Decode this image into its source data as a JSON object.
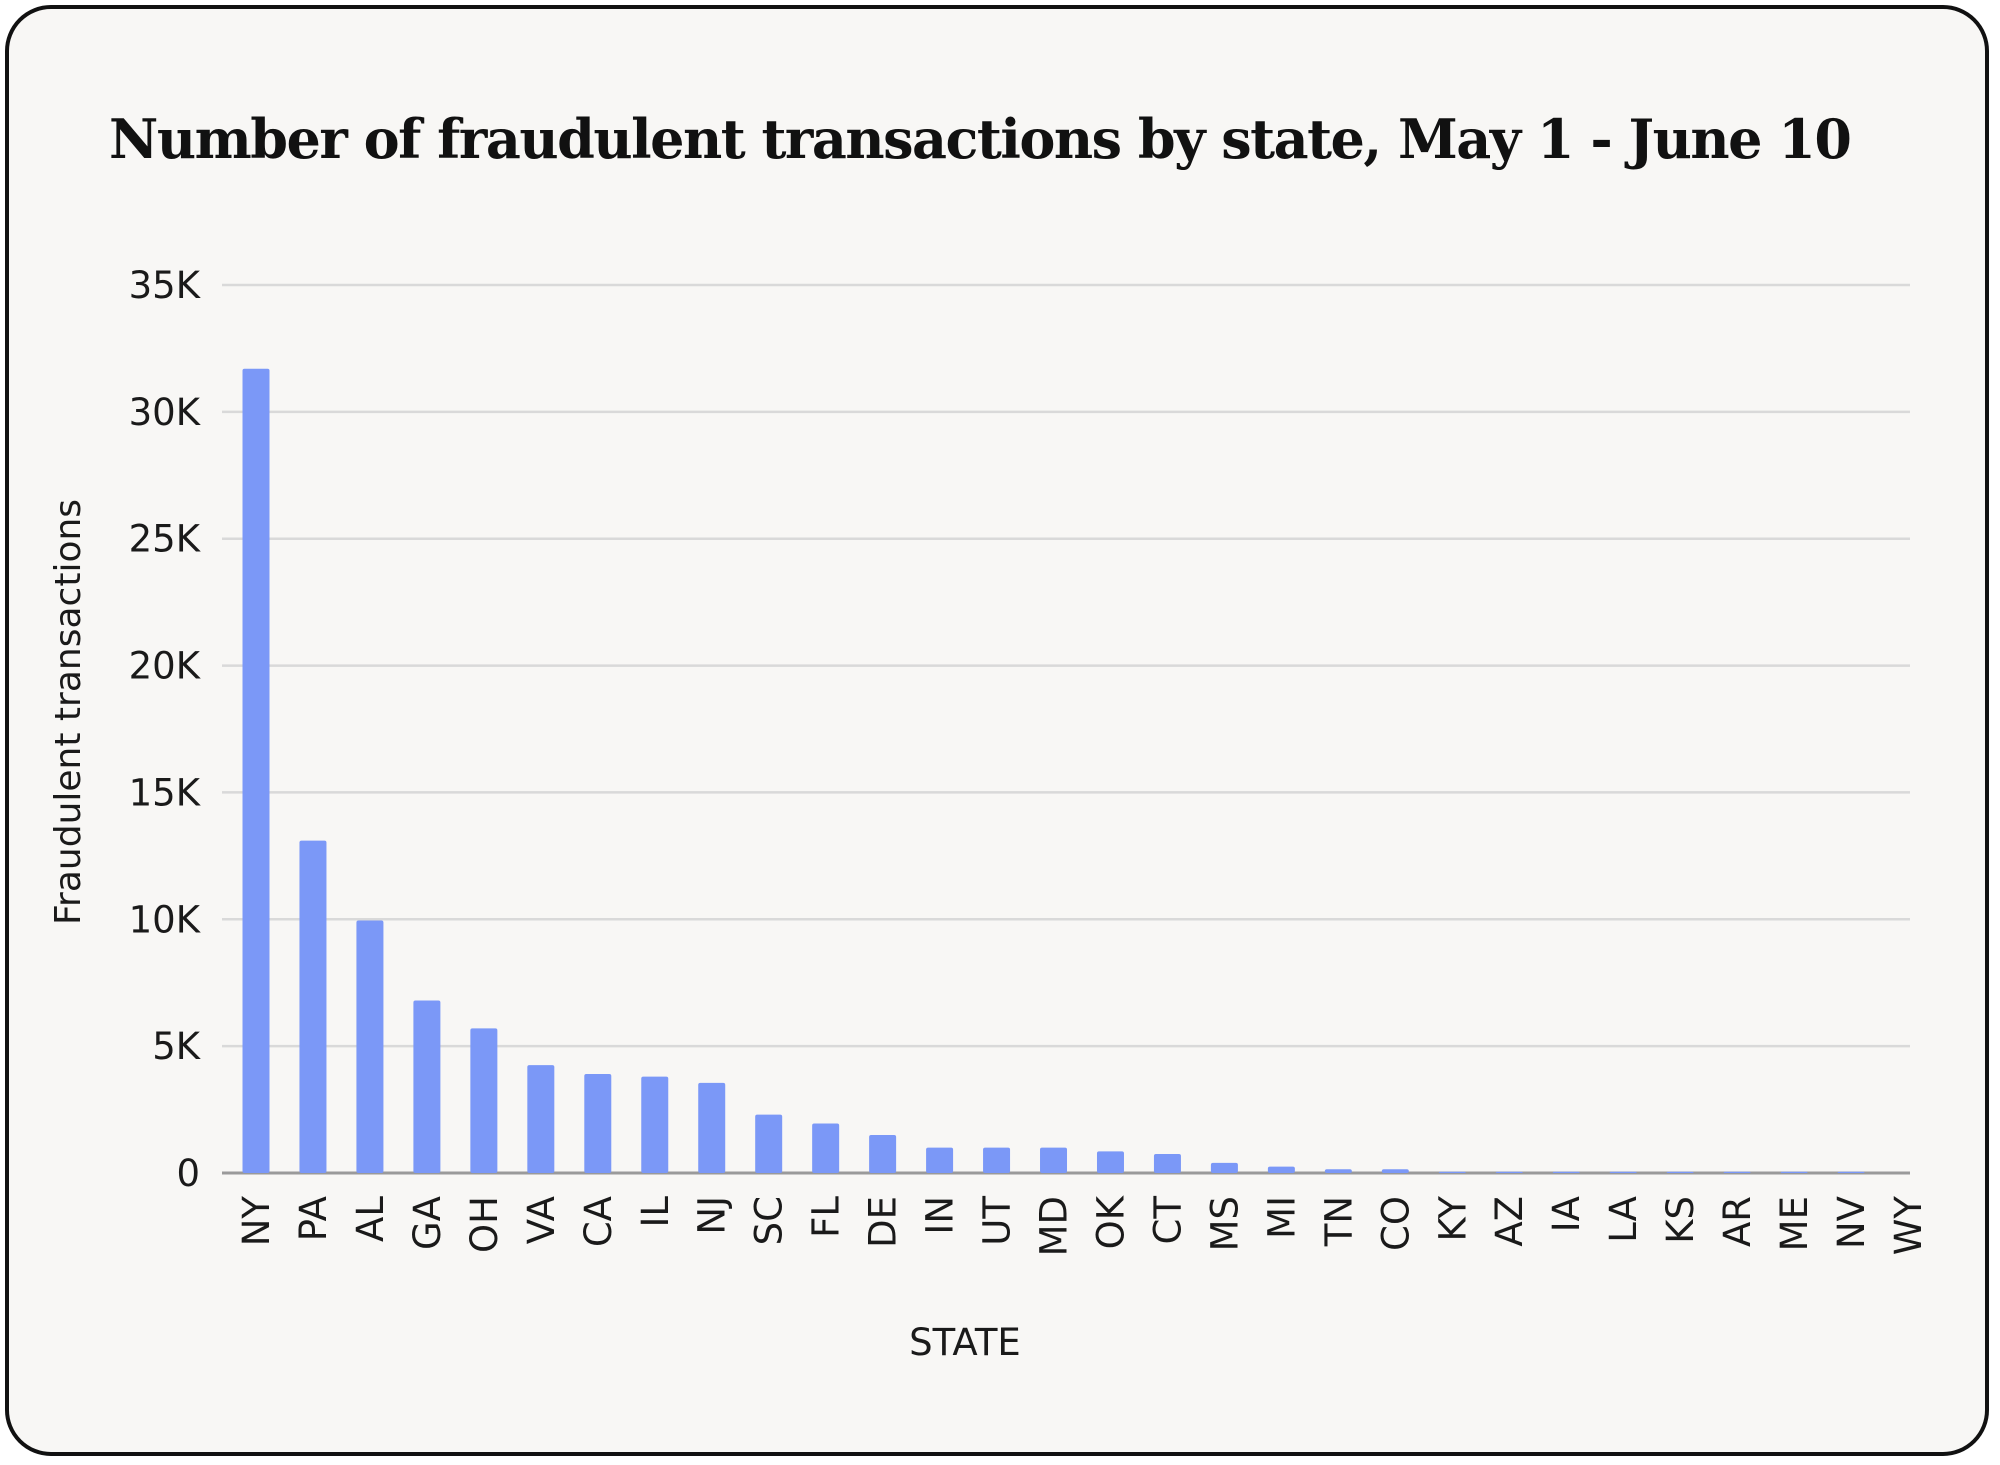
{
  "chart_data": {
    "type": "bar",
    "title": "Number of fraudulent transactions by state, May 1 - June 10",
    "xlabel": "STATE",
    "ylabel": "Fraudulent transactions",
    "categories": [
      "NY",
      "PA",
      "AL",
      "GA",
      "OH",
      "VA",
      "CA",
      "IL",
      "NJ",
      "SC",
      "FL",
      "DE",
      "IN",
      "UT",
      "MD",
      "OK",
      "CT",
      "MS",
      "MI",
      "TN",
      "CO",
      "KY",
      "AZ",
      "IA",
      "LA",
      "KS",
      "AR",
      "ME",
      "NV",
      "WY"
    ],
    "values": [
      31700,
      13100,
      9950,
      6800,
      5700,
      4250,
      3900,
      3800,
      3550,
      2300,
      1950,
      1500,
      1000,
      1000,
      1000,
      850,
      750,
      400,
      250,
      150,
      150,
      50,
      50,
      50,
      50,
      50,
      50,
      50,
      50,
      0
    ],
    "ylim": [
      0,
      35000
    ],
    "yticks": [
      0,
      5000,
      10000,
      15000,
      20000,
      25000,
      30000,
      35000
    ],
    "ytick_labels": [
      "0",
      "5K",
      "10K",
      "15K",
      "20K",
      "25K",
      "30K",
      "35K"
    ],
    "grid": true,
    "legend": "none",
    "colors": {
      "bar": "#7b98f7",
      "grid": "#d9d9d9",
      "text": "#1a1a1a",
      "background": "#f8f7f5"
    }
  }
}
